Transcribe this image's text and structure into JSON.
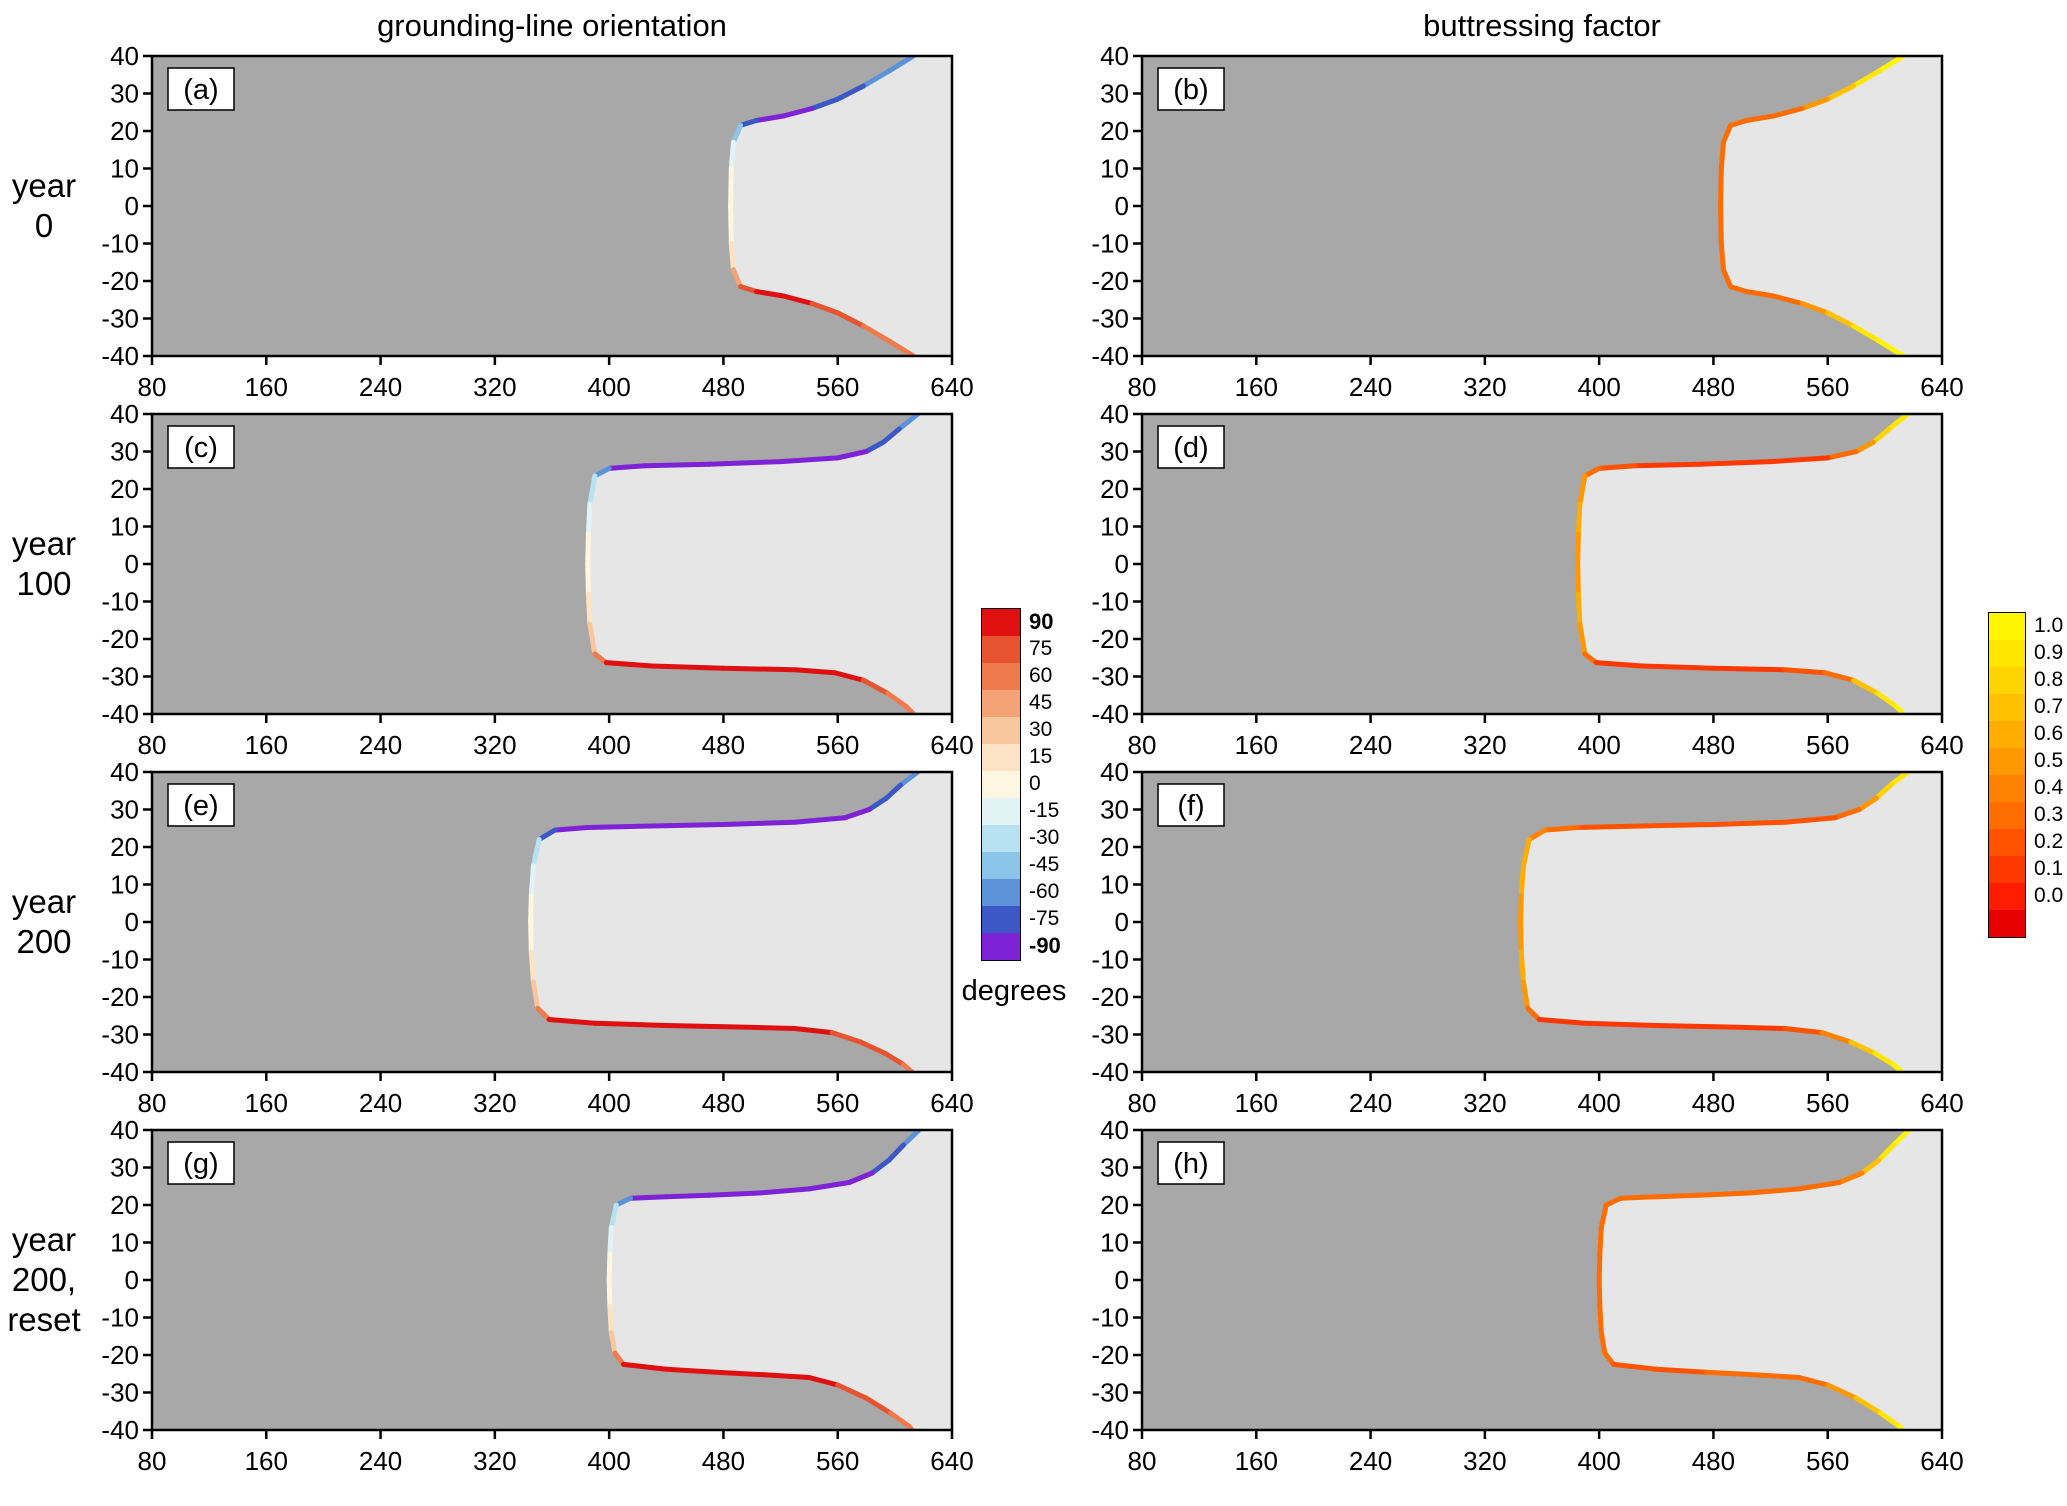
{
  "figure": {
    "left_column_title": "grounding-line orientation",
    "right_column_title": "buttressing factor",
    "rows": [
      {
        "label_lines": [
          "year",
          "0"
        ]
      },
      {
        "label_lines": [
          "year",
          "100"
        ]
      },
      {
        "label_lines": [
          "year",
          "200"
        ]
      },
      {
        "label_lines": [
          "year",
          "200,",
          "reset"
        ]
      }
    ]
  },
  "colors": {
    "grounded_bg": "#a8a8a8",
    "floating_bg": "#e6e6e6",
    "panel_border": "#000000"
  },
  "axes": {
    "x_range": [
      80,
      640
    ],
    "y_range": [
      -40,
      40
    ],
    "x_ticks": [
      80,
      160,
      240,
      320,
      400,
      480,
      560,
      640
    ],
    "y_ticks": [
      40,
      30,
      20,
      10,
      0,
      -10,
      -20,
      -30,
      -40
    ]
  },
  "degrees_colorbar": {
    "title": "degrees",
    "tick_labels": [
      "90",
      "75",
      "60",
      "45",
      "30",
      "15",
      "0",
      "-15",
      "-30",
      "-45",
      "-60",
      "-75",
      "-90"
    ],
    "bold_ticks": [
      "90",
      "-90"
    ],
    "values": [
      90,
      75,
      60,
      45,
      30,
      15,
      0,
      -15,
      -30,
      -45,
      -60,
      -75,
      -90
    ],
    "colors": [
      "#e01010",
      "#e8542f",
      "#ef7b4d",
      "#f4a377",
      "#f8c79e",
      "#fbe3c3",
      "#fdf6e0",
      "#e2f3f6",
      "#b8e2f2",
      "#8cc5ea",
      "#5c93d8",
      "#3c58c6",
      "#7e22d6"
    ]
  },
  "buttressing_colorbar": {
    "title": "",
    "tick_labels": [
      "1.0",
      "0.9",
      "0.8",
      "0.7",
      "0.6",
      "0.5",
      "0.4",
      "0.3",
      "0.2",
      "0.1",
      "0.0"
    ],
    "values": [
      1.0,
      0.9,
      0.8,
      0.7,
      0.6,
      0.5,
      0.4,
      0.3,
      0.2,
      0.1,
      0.0
    ],
    "colors": [
      "#fff500",
      "#ffe600",
      "#ffd400",
      "#ffc100",
      "#ffad00",
      "#ff9800",
      "#ff8300",
      "#ff6c00",
      "#ff5300",
      "#ff3800",
      "#ff1c00"
    ],
    "below_min_color": "#e80000"
  },
  "chart_data": {
    "type": "heatmap",
    "description": "Eight map-view panels (4 rows x 2 columns) of an ice-sheet model domain. Dark gray = grounded ice, light gray = floating ice shelf. The colored curve is the grounding line; left column colors it by grounding-line orientation in degrees (-90 purple to +90 red), right column by buttressing factor (0 red to 1 yellow). Rows show year 0, year 100, year 200, and year 200 after reset.",
    "x_range": [
      80,
      640
    ],
    "y_range": [
      -40,
      40
    ],
    "x_ticks": [
      80,
      160,
      240,
      320,
      400,
      480,
      560,
      640
    ],
    "y_ticks": [
      40,
      30,
      20,
      10,
      0,
      -10,
      -20,
      -30,
      -40
    ],
    "rows": [
      {
        "time_label": "year 0",
        "grounding_line_x": [
          613,
          596,
          578,
          560,
          542,
          522,
          503,
          492,
          487,
          485.5,
          485,
          485.5,
          487,
          492,
          503,
          522,
          542,
          560,
          578,
          596,
          613
        ],
        "grounding_line_y": [
          40,
          36,
          32,
          28.5,
          26,
          24,
          22.8,
          21.5,
          17,
          10,
          0,
          -10,
          -17,
          -21.5,
          -22.8,
          -24,
          -26,
          -28.5,
          -32,
          -36,
          -40
        ],
        "panels": [
          {
            "id": "(a)",
            "quantity": "grounding-line orientation (degrees)",
            "line_values": [
              -48,
              -58,
              -68,
              -78,
              -84,
              -88,
              -89,
              -72,
              -28,
              -6,
              0,
              6,
              28,
              72,
              89,
              88,
              84,
              78,
              68,
              58,
              48
            ]
          },
          {
            "id": "(b)",
            "quantity": "buttressing factor",
            "line_values": [
              1.0,
              0.95,
              0.8,
              0.55,
              0.4,
              0.3,
              0.28,
              0.3,
              0.33,
              0.35,
              0.35,
              0.35,
              0.33,
              0.3,
              0.28,
              0.3,
              0.4,
              0.55,
              0.8,
              0.95,
              1.0
            ]
          }
        ]
      },
      {
        "time_label": "year 100",
        "grounding_line_x": [
          616,
          603,
          592,
          580,
          560,
          520,
          470,
          425,
          400,
          390,
          386.5,
          385.5,
          385,
          385.5,
          386.5,
          390,
          398,
          430,
          480,
          530,
          558,
          578,
          595,
          608,
          613
        ],
        "grounding_line_y": [
          40,
          36,
          32.5,
          30,
          28.3,
          27.3,
          26.6,
          26.2,
          25.5,
          23.5,
          16,
          8,
          0,
          -8,
          -16,
          -24,
          -26.3,
          -27.2,
          -27.8,
          -28.2,
          -29,
          -31,
          -34.5,
          -38,
          -40
        ],
        "panels": [
          {
            "id": "(c)",
            "quantity": "grounding-line orientation (degrees)",
            "line_values": [
              -62,
              -70,
              -77,
              -84,
              -88,
              -89,
              -89,
              -88,
              -80,
              -45,
              -12,
              -4,
              0,
              4,
              12,
              45,
              80,
              88,
              89,
              89,
              86,
              80,
              72,
              62,
              56
            ]
          },
          {
            "id": "(d)",
            "quantity": "buttressing factor",
            "line_values": [
              1.0,
              0.9,
              0.7,
              0.35,
              0.15,
              0.1,
              0.12,
              0.15,
              0.25,
              0.45,
              0.6,
              0.55,
              0.5,
              0.55,
              0.6,
              0.45,
              0.15,
              0.1,
              0.1,
              0.12,
              0.2,
              0.5,
              0.8,
              0.95,
              1.0
            ]
          }
        ]
      },
      {
        "time_label": "year 200",
        "grounding_line_x": [
          616,
          604,
          594,
          582,
          565,
          530,
          480,
          430,
          385,
          362,
          351,
          347,
          345.5,
          345,
          345.5,
          347,
          350,
          358,
          390,
          440,
          490,
          530,
          556,
          576,
          593,
          606,
          612
        ],
        "grounding_line_y": [
          40,
          36.5,
          33,
          30,
          27.8,
          26.6,
          26,
          25.6,
          25.2,
          24.5,
          22,
          15,
          7,
          0,
          -8,
          -16,
          -23,
          -26,
          -27,
          -27.6,
          -28,
          -28.4,
          -29.5,
          -32,
          -35,
          -38,
          -40
        ],
        "panels": [
          {
            "id": "(e)",
            "quantity": "grounding-line orientation (degrees)",
            "line_values": [
              -62,
              -70,
              -77,
              -84,
              -88,
              -89,
              -90,
              -90,
              -89,
              -82,
              -55,
              -15,
              -5,
              0,
              5,
              14,
              45,
              78,
              88,
              89,
              90,
              88,
              84,
              78,
              72,
              64,
              58
            ]
          },
          {
            "id": "(f)",
            "quantity": "buttressing factor",
            "line_values": [
              1.0,
              0.9,
              0.7,
              0.35,
              0.18,
              0.15,
              0.2,
              0.15,
              0.2,
              0.3,
              0.5,
              0.6,
              0.55,
              0.5,
              0.55,
              0.6,
              0.4,
              0.12,
              0.08,
              0.1,
              0.12,
              0.15,
              0.3,
              0.6,
              0.85,
              0.95,
              1.0
            ]
          }
        ]
      },
      {
        "time_label": "year 200, reset",
        "grounding_line_x": [
          617,
          606,
          596,
          584,
          568,
          540,
          505,
          470,
          440,
          415,
          405,
          401.5,
          400.5,
          400,
          400.5,
          401.5,
          404,
          410,
          440,
          475,
          510,
          540,
          560,
          580,
          597,
          610,
          612
        ],
        "grounding_line_y": [
          40,
          36,
          32,
          28.5,
          26,
          24.3,
          23.2,
          22.6,
          22.2,
          21.8,
          20,
          14,
          7,
          0,
          -7,
          -14,
          -19.5,
          -22.5,
          -23.8,
          -24.6,
          -25.3,
          -26,
          -28,
          -31.5,
          -35.5,
          -39,
          -40
        ],
        "panels": [
          {
            "id": "(g)",
            "quantity": "grounding-line orientation (degrees)",
            "line_values": [
              -62,
              -70,
              -77,
              -83,
              -87,
              -89,
              -89,
              -89,
              -88,
              -80,
              -50,
              -12,
              -4,
              0,
              4,
              12,
              45,
              80,
              88,
              89,
              89,
              87,
              82,
              76,
              70,
              62,
              58
            ]
          },
          {
            "id": "(h)",
            "quantity": "buttressing factor",
            "line_values": [
              1.0,
              0.92,
              0.8,
              0.5,
              0.3,
              0.25,
              0.25,
              0.3,
              0.28,
              0.3,
              0.3,
              0.3,
              0.3,
              0.3,
              0.3,
              0.3,
              0.3,
              0.25,
              0.2,
              0.25,
              0.25,
              0.3,
              0.35,
              0.6,
              0.85,
              0.95,
              1.0
            ]
          }
        ]
      }
    ]
  }
}
